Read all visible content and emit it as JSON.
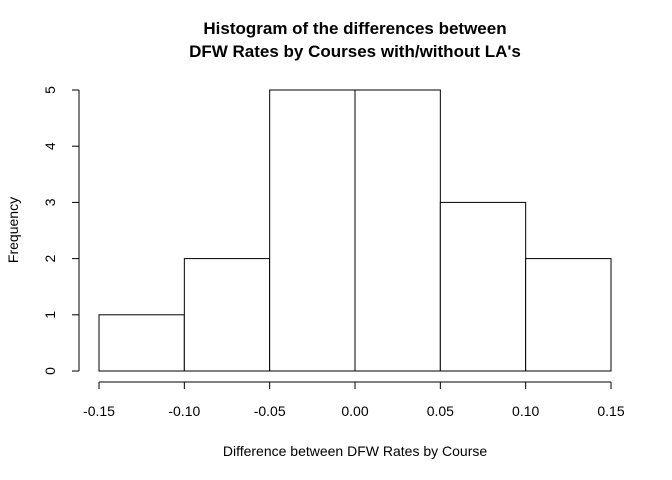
{
  "chart_data": {
    "type": "histogram",
    "title_lines": [
      "Histogram of the differences between",
      "DFW Rates by Courses with/without LA's"
    ],
    "xlabel": "Difference between DFW Rates by Course",
    "ylabel": "Frequency",
    "bins": [
      {
        "from": -0.15,
        "to": -0.1,
        "count": 1
      },
      {
        "from": -0.1,
        "to": -0.05,
        "count": 2
      },
      {
        "from": -0.05,
        "to": 0.0,
        "count": 5
      },
      {
        "from": 0.0,
        "to": 0.05,
        "count": 5
      },
      {
        "from": 0.05,
        "to": 0.1,
        "count": 3
      },
      {
        "from": 0.1,
        "to": 0.15,
        "count": 2
      }
    ],
    "xlim": [
      -0.15,
      0.15
    ],
    "ylim": [
      0,
      5
    ],
    "x_ticks": [
      -0.15,
      -0.1,
      -0.05,
      0.0,
      0.05,
      0.1,
      0.15
    ],
    "x_tick_labels": [
      "-0.15",
      "-0.10",
      "-0.05",
      "0.00",
      "0.05",
      "0.10",
      "0.15"
    ],
    "y_ticks": [
      0,
      1,
      2,
      3,
      4,
      5
    ],
    "y_tick_labels": [
      "0",
      "1",
      "2",
      "3",
      "4",
      "5"
    ],
    "grid": false,
    "bar_fill": "#ffffff",
    "bar_stroke": "#000000"
  }
}
